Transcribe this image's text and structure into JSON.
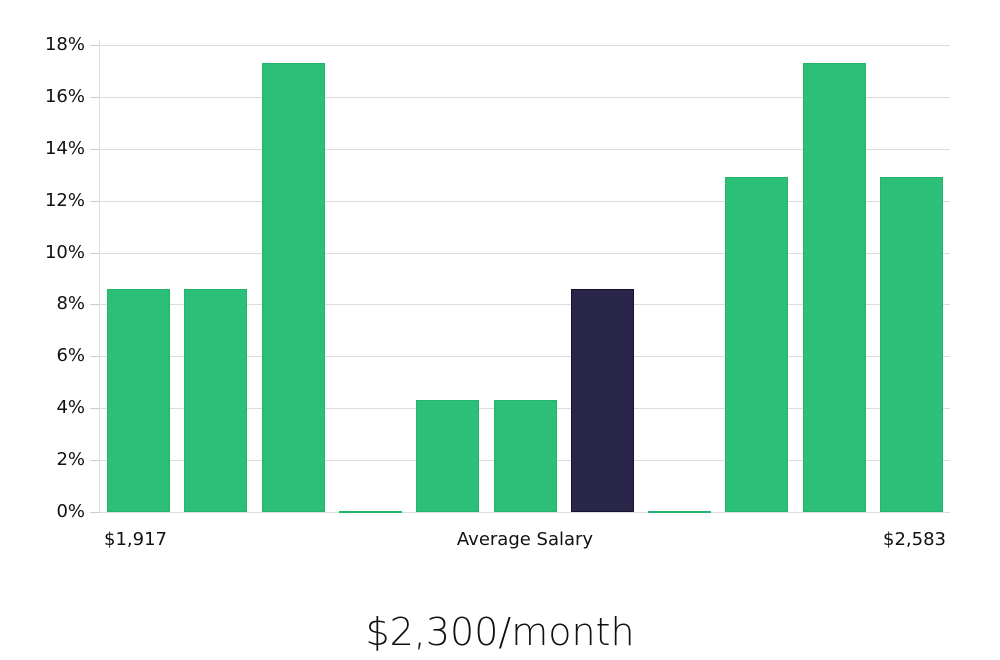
{
  "chart_data": {
    "type": "bar",
    "title": "",
    "subtitle": "$2,300/month",
    "xlabel": "Average Salary",
    "ylabel": "",
    "x_tick_labels": {
      "left": "$1,917",
      "center": "Average Salary",
      "right": "$2,583"
    },
    "categories": [
      "bin1",
      "bin2",
      "bin3",
      "bin4",
      "bin5",
      "bin6",
      "bin7",
      "bin8",
      "bin9",
      "bin10",
      "bin11"
    ],
    "values": [
      8.6,
      8.6,
      17.3,
      0,
      4.3,
      4.3,
      8.6,
      0,
      12.9,
      17.3,
      12.9
    ],
    "highlight_index": 6,
    "ylim": [
      0,
      18
    ],
    "yticks": [
      "0%",
      "2%",
      "4%",
      "6%",
      "8%",
      "10%",
      "12%",
      "14%",
      "16%",
      "18%"
    ],
    "grid": true,
    "colors": {
      "bar": "#2bbf78",
      "highlight": "#29264a",
      "grid": "#dcdcdc"
    }
  }
}
